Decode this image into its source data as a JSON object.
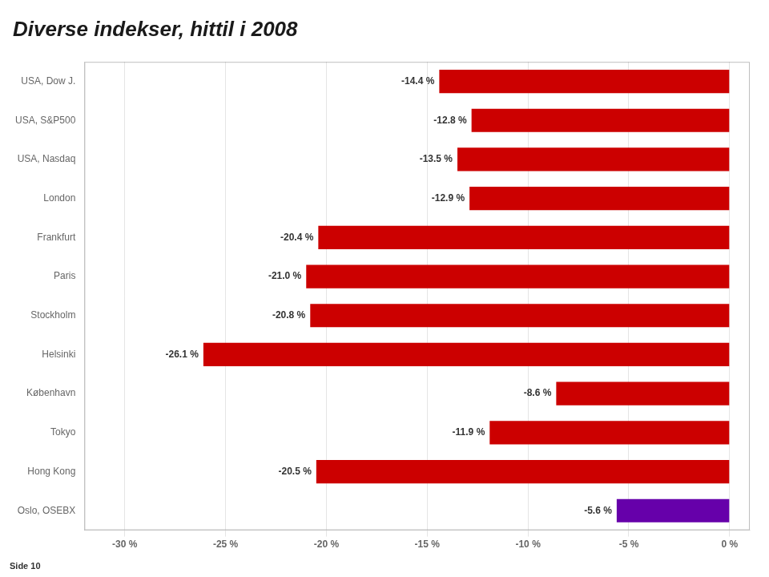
{
  "chart_data": {
    "type": "bar",
    "orientation": "horizontal",
    "title": "Diverse indekser, hittil i 2008",
    "categories": [
      "USA, Dow J.",
      "USA, S&P500",
      "USA, Nasdaq",
      "London",
      "Frankfurt",
      "Paris",
      "Stockholm",
      "Helsinki",
      "København",
      "Tokyo",
      "Hong Kong",
      "Oslo, OSEBX"
    ],
    "values": [
      -14.4,
      -12.8,
      -13.5,
      -12.9,
      -20.4,
      -21.0,
      -20.8,
      -26.1,
      -8.6,
      -11.9,
      -20.5,
      -5.6
    ],
    "value_labels": [
      "-14.4 %",
      "-12.8 %",
      "-13.5 %",
      "-12.9 %",
      "-20.4 %",
      "-21.0 %",
      "-20.8 %",
      "-26.1 %",
      "-8.6 %",
      "-11.9 %",
      "-20.5 %",
      "-5.6 %"
    ],
    "data_labels": true,
    "colors": [
      "#cc0000",
      "#cc0000",
      "#cc0000",
      "#cc0000",
      "#cc0000",
      "#cc0000",
      "#cc0000",
      "#cc0000",
      "#cc0000",
      "#cc0000",
      "#cc0000",
      "#6600aa"
    ],
    "xlim": [
      -32,
      1
    ],
    "xticks": [
      {
        "value": -30,
        "label": "-30 %"
      },
      {
        "value": -25,
        "label": "-25 %"
      },
      {
        "value": -20,
        "label": "-20 %"
      },
      {
        "value": -15,
        "label": "-15 %"
      },
      {
        "value": -10,
        "label": "-10 %"
      },
      {
        "value": -5,
        "label": "-5 %"
      },
      {
        "value": 0,
        "label": "0 %"
      }
    ],
    "grid": true,
    "annotations": [
      "Side 10"
    ]
  }
}
